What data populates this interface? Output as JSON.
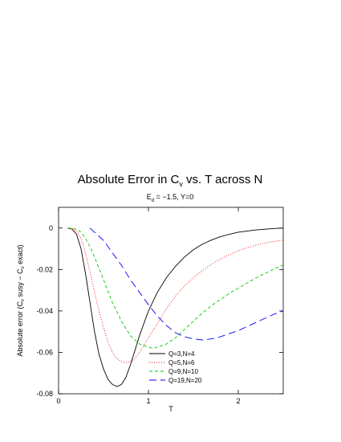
{
  "chart_data": {
    "type": "line",
    "title": "Absolute Error in C",
    "title_sub": "v",
    "title_tail": " vs. T across N",
    "subtitle": "E",
    "subtitle_sub": "d",
    "subtitle_tail": " = −1.5,  Y=0",
    "xlabel": "T",
    "ylabel": "Absolute error (C",
    "ylabel_sub1": "v",
    "ylabel_mid": " susy − C",
    "ylabel_sub2": "v",
    "ylabel_tail": " exact)",
    "xlim": [
      0,
      2.5
    ],
    "ylim": [
      -0.08,
      0.01
    ],
    "xticks": [
      0,
      1,
      2
    ],
    "xtick_labels": [
      "0",
      "1",
      "2"
    ],
    "yticks": [
      0,
      -0.02,
      -0.04,
      -0.06,
      -0.08
    ],
    "ytick_labels": [
      "0",
      "-0.02",
      "-0.04",
      "-0.06",
      "-0.08"
    ],
    "grid": false,
    "legend_position": "bottom-center",
    "series": [
      {
        "name": "Q=3,N=4",
        "color": "#000000",
        "dash": "solid",
        "points": [
          [
            0.1,
            0
          ],
          [
            0.15,
            -0.0005
          ],
          [
            0.2,
            -0.003
          ],
          [
            0.25,
            -0.01
          ],
          [
            0.3,
            -0.022
          ],
          [
            0.35,
            -0.036
          ],
          [
            0.4,
            -0.05
          ],
          [
            0.45,
            -0.061
          ],
          [
            0.5,
            -0.068
          ],
          [
            0.55,
            -0.073
          ],
          [
            0.6,
            -0.0755
          ],
          [
            0.65,
            -0.0765
          ],
          [
            0.7,
            -0.0755
          ],
          [
            0.75,
            -0.072
          ],
          [
            0.8,
            -0.066
          ],
          [
            0.85,
            -0.059
          ],
          [
            0.9,
            -0.052
          ],
          [
            1.0,
            -0.04
          ],
          [
            1.1,
            -0.031
          ],
          [
            1.2,
            -0.024
          ],
          [
            1.3,
            -0.0185
          ],
          [
            1.4,
            -0.014
          ],
          [
            1.5,
            -0.0105
          ],
          [
            1.6,
            -0.0078
          ],
          [
            1.7,
            -0.0058
          ],
          [
            1.8,
            -0.0042
          ],
          [
            1.9,
            -0.003
          ],
          [
            2.0,
            -0.002
          ],
          [
            2.2,
            -0.0009
          ],
          [
            2.4,
            -0.0002
          ],
          [
            2.5,
            0
          ]
        ]
      },
      {
        "name": "Q=5,N=6",
        "color": "#ff0000",
        "dash": "1,2",
        "points": [
          [
            0.1,
            0
          ],
          [
            0.15,
            -0.0003
          ],
          [
            0.2,
            -0.0015
          ],
          [
            0.25,
            -0.005
          ],
          [
            0.3,
            -0.012
          ],
          [
            0.35,
            -0.021
          ],
          [
            0.4,
            -0.031
          ],
          [
            0.45,
            -0.04
          ],
          [
            0.5,
            -0.048
          ],
          [
            0.55,
            -0.055
          ],
          [
            0.6,
            -0.06
          ],
          [
            0.65,
            -0.063
          ],
          [
            0.7,
            -0.0645
          ],
          [
            0.75,
            -0.065
          ],
          [
            0.8,
            -0.0645
          ],
          [
            0.85,
            -0.063
          ],
          [
            0.9,
            -0.06
          ],
          [
            1.0,
            -0.053
          ],
          [
            1.1,
            -0.046
          ],
          [
            1.2,
            -0.039
          ],
          [
            1.3,
            -0.033
          ],
          [
            1.4,
            -0.028
          ],
          [
            1.5,
            -0.024
          ],
          [
            1.6,
            -0.0205
          ],
          [
            1.7,
            -0.0175
          ],
          [
            1.8,
            -0.015
          ],
          [
            1.9,
            -0.0128
          ],
          [
            2.0,
            -0.011
          ],
          [
            2.1,
            -0.0095
          ],
          [
            2.2,
            -0.0082
          ],
          [
            2.3,
            -0.0072
          ],
          [
            2.4,
            -0.0065
          ],
          [
            2.5,
            -0.0058
          ]
        ]
      },
      {
        "name": "Q=9,N=10",
        "color": "#00cc00",
        "dash": "4,3",
        "points": [
          [
            0.1,
            0
          ],
          [
            0.15,
            -0.0001
          ],
          [
            0.2,
            -0.0006
          ],
          [
            0.25,
            -0.002
          ],
          [
            0.3,
            -0.005
          ],
          [
            0.35,
            -0.009
          ],
          [
            0.4,
            -0.014
          ],
          [
            0.5,
            -0.025
          ],
          [
            0.6,
            -0.036
          ],
          [
            0.7,
            -0.045
          ],
          [
            0.8,
            -0.052
          ],
          [
            0.9,
            -0.056
          ],
          [
            1.0,
            -0.0575
          ],
          [
            1.05,
            -0.058
          ],
          [
            1.1,
            -0.0575
          ],
          [
            1.2,
            -0.056
          ],
          [
            1.3,
            -0.053
          ],
          [
            1.4,
            -0.049
          ],
          [
            1.5,
            -0.045
          ],
          [
            1.6,
            -0.041
          ],
          [
            1.7,
            -0.0375
          ],
          [
            1.8,
            -0.0345
          ],
          [
            1.9,
            -0.0315
          ],
          [
            2.0,
            -0.029
          ],
          [
            2.1,
            -0.0265
          ],
          [
            2.2,
            -0.024
          ],
          [
            2.3,
            -0.0218
          ],
          [
            2.4,
            -0.0198
          ],
          [
            2.5,
            -0.0178
          ]
        ]
      },
      {
        "name": "Q=19,N=20",
        "color": "#0000ff",
        "dash": "9,5",
        "points": [
          [
            0.35,
            0
          ],
          [
            0.4,
            -0.002
          ],
          [
            0.5,
            -0.006
          ],
          [
            0.6,
            -0.012
          ],
          [
            0.7,
            -0.018
          ],
          [
            0.8,
            -0.025
          ],
          [
            0.9,
            -0.031
          ],
          [
            1.0,
            -0.037
          ],
          [
            1.1,
            -0.0425
          ],
          [
            1.2,
            -0.047
          ],
          [
            1.3,
            -0.0505
          ],
          [
            1.4,
            -0.0525
          ],
          [
            1.5,
            -0.0535
          ],
          [
            1.6,
            -0.054
          ],
          [
            1.7,
            -0.0535
          ],
          [
            1.8,
            -0.0525
          ],
          [
            1.9,
            -0.051
          ],
          [
            2.0,
            -0.0495
          ],
          [
            2.1,
            -0.0475
          ],
          [
            2.2,
            -0.0455
          ],
          [
            2.3,
            -0.0435
          ],
          [
            2.4,
            -0.0415
          ],
          [
            2.5,
            -0.04
          ]
        ]
      }
    ]
  }
}
